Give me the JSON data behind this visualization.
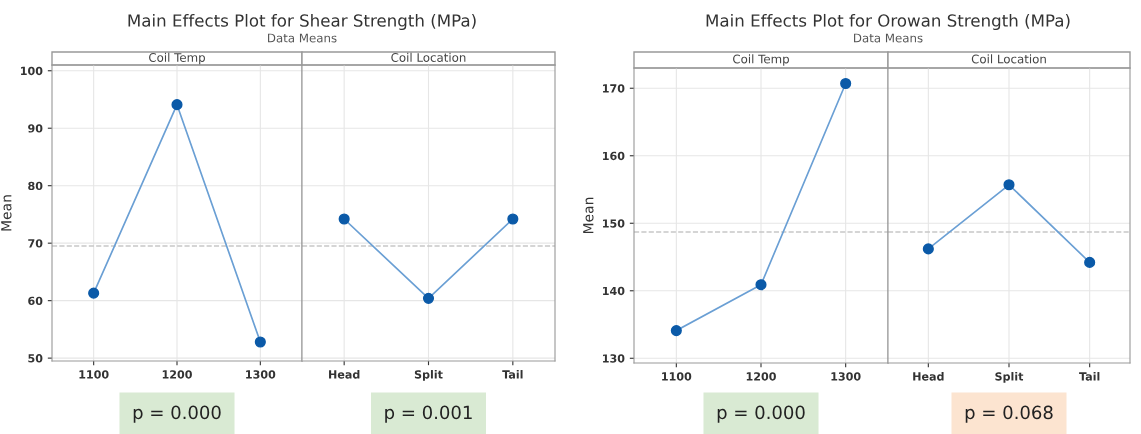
{
  "chart_data": [
    {
      "type": "line",
      "title": "Main Effects Plot for Shear Strength (MPa)",
      "subtitle": "Data Means",
      "ylabel": "Mean",
      "categories": [
        "1100",
        "1200",
        "1300"
      ],
      "series": [
        {
          "color": "#0b5aa8",
          "values": [
            61.3,
            94.1,
            52.8
          ]
        }
      ],
      "ylim": [
        49.5,
        101
      ],
      "yticks": [
        50,
        60,
        70,
        80,
        90,
        100
      ],
      "ref_lines": [
        {
          "axis": "y",
          "value": 69.5,
          "color": "#c8c8c8",
          "line_style": "dashed"
        }
      ],
      "grid": true,
      "marker": "circle",
      "annotations": [
        "Coil Temp",
        "p = 0.000"
      ]
    },
    {
      "type": "line",
      "categories": [
        "Head",
        "Split",
        "Tail"
      ],
      "series": [
        {
          "color": "#0b5aa8",
          "values": [
            74.2,
            60.4,
            74.2
          ]
        }
      ],
      "ylim": [
        49.5,
        101
      ],
      "yticks": [
        50,
        60,
        70,
        80,
        90,
        100
      ],
      "tick_labels": "x",
      "ref_lines": [
        {
          "axis": "y",
          "value": 69.5,
          "color": "#c8c8c8",
          "line_style": "dashed"
        }
      ],
      "grid": true,
      "marker": "circle",
      "annotations": [
        "Coil Location",
        "p = 0.001"
      ]
    },
    {
      "type": "line",
      "title": "Main Effects Plot for Orowan Strength (MPa)",
      "subtitle": "Data Means",
      "ylabel": "Mean",
      "categories": [
        "1100",
        "1200",
        "1300"
      ],
      "series": [
        {
          "color": "#0b5aa8",
          "values": [
            134.1,
            140.9,
            170.7
          ]
        }
      ],
      "ylim": [
        129.3,
        173
      ],
      "yticks": [
        130,
        140,
        150,
        160,
        170
      ],
      "ref_lines": [
        {
          "axis": "y",
          "value": 148.7,
          "color": "#c8c8c8",
          "line_style": "dashed"
        }
      ],
      "grid": true,
      "marker": "circle",
      "annotations": [
        "Coil Temp",
        "p = 0.000"
      ]
    },
    {
      "type": "line",
      "categories": [
        "Head",
        "Split",
        "Tail"
      ],
      "series": [
        {
          "color": "#0b5aa8",
          "values": [
            146.2,
            155.7,
            144.2
          ]
        }
      ],
      "ylim": [
        129.3,
        173
      ],
      "yticks": [
        130,
        140,
        150,
        160,
        170
      ],
      "tick_labels": "x",
      "ref_lines": [
        {
          "axis": "y",
          "value": 148.7,
          "color": "#c8c8c8",
          "line_style": "dashed"
        }
      ],
      "grid": true,
      "marker": "circle",
      "annotations": [
        "Coil Location",
        "p = 0.068"
      ]
    }
  ]
}
